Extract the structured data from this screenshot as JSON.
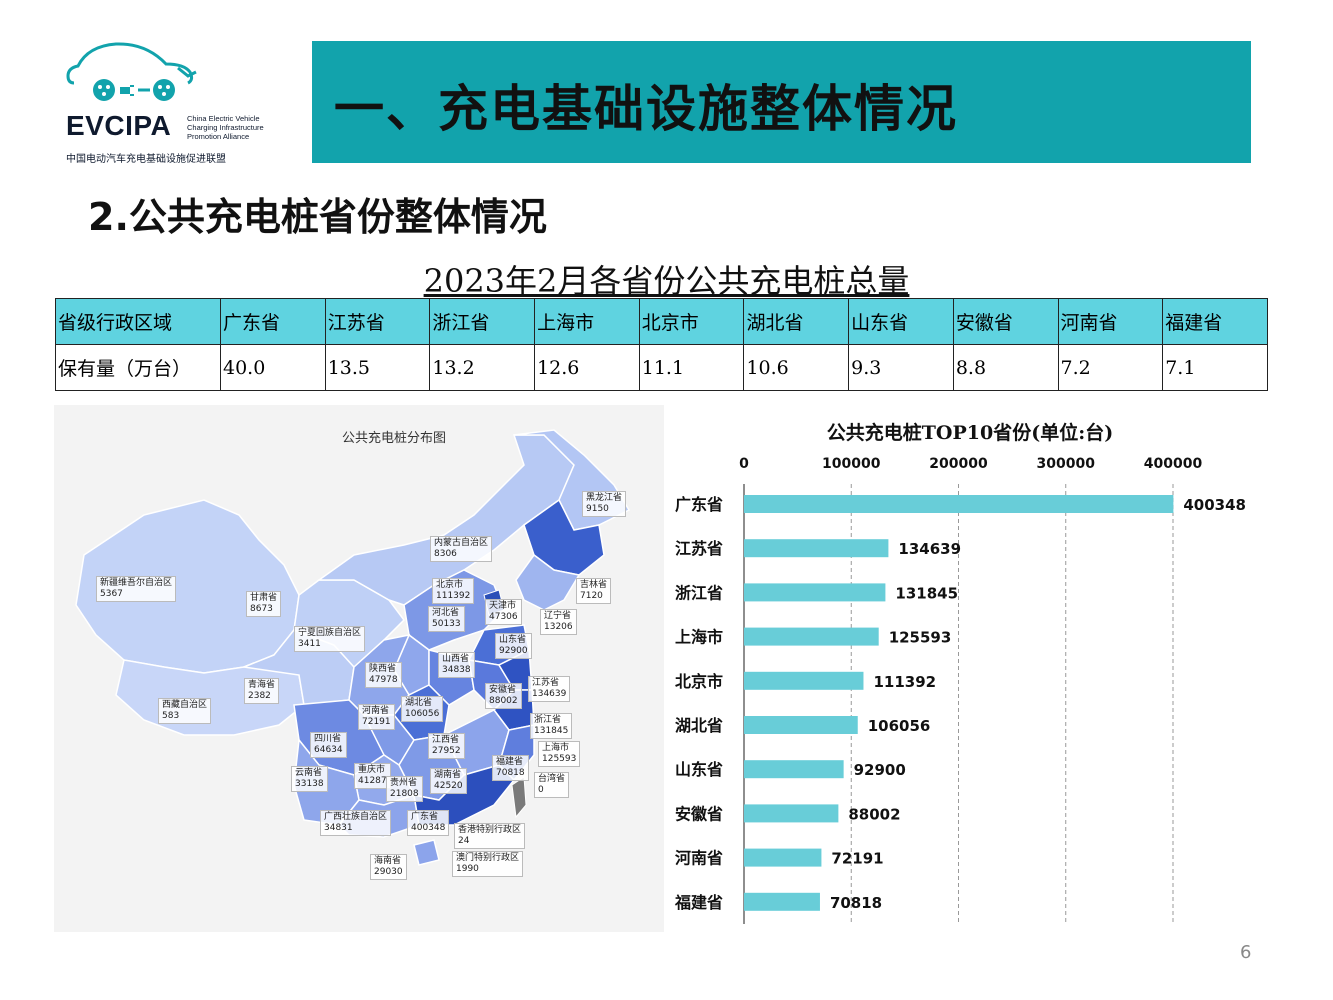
{
  "logo": {
    "abbr": "EVCIPA",
    "en_line1": "China Electric Vehicle",
    "en_line2": "Charging Infrastructure",
    "en_line3": "Promotion Alliance",
    "cn": "中国电动汽车充电基础设施促进联盟"
  },
  "header": {
    "title": "一、充电基础设施整体情况"
  },
  "section": {
    "title": "2.公共充电桩省份整体情况"
  },
  "table": {
    "title": "2023年2月各省份公共充电桩总量",
    "row_label_region": "省级行政区域",
    "row_label_count": "保有量（万台）",
    "provinces": [
      "广东省",
      "江苏省",
      "浙江省",
      "上海市",
      "北京市",
      "湖北省",
      "山东省",
      "安徽省",
      "河南省",
      "福建省"
    ],
    "counts": [
      "40.0",
      "13.5",
      "13.2",
      "12.6",
      "11.1",
      "10.6",
      "9.3",
      "8.8",
      "7.2",
      "7.1"
    ]
  },
  "map": {
    "title": "公共充电桩分布图",
    "labels": [
      {
        "name": "黑龙江省",
        "value": "9150"
      },
      {
        "name": "内蒙古自治区",
        "value": "8306"
      },
      {
        "name": "吉林省",
        "value": "7120"
      },
      {
        "name": "新疆维吾尔自治区",
        "value": "5367"
      },
      {
        "name": "甘肃省",
        "value": "8673"
      },
      {
        "name": "北京市",
        "value": "111392"
      },
      {
        "name": "天津市",
        "value": "47306"
      },
      {
        "name": "辽宁省",
        "value": "13206"
      },
      {
        "name": "河北省",
        "value": "50133"
      },
      {
        "name": "宁夏回族自治区",
        "value": "3411"
      },
      {
        "name": "山东省",
        "value": "92900"
      },
      {
        "name": "山西省",
        "value": "34838"
      },
      {
        "name": "陕西省",
        "value": "47978"
      },
      {
        "name": "青海省",
        "value": "2382"
      },
      {
        "name": "江苏省",
        "value": "134639"
      },
      {
        "name": "安徽省",
        "value": "88002"
      },
      {
        "name": "西藏自治区",
        "value": "583"
      },
      {
        "name": "河南省",
        "value": "72191"
      },
      {
        "name": "湖北省",
        "value": "106056"
      },
      {
        "name": "浙江省",
        "value": "131845"
      },
      {
        "name": "四川省",
        "value": "64634"
      },
      {
        "name": "江西省",
        "value": "27952"
      },
      {
        "name": "上海市",
        "value": "125593"
      },
      {
        "name": "重庆市",
        "value": "41287"
      },
      {
        "name": "福建省",
        "value": "70818"
      },
      {
        "name": "云南省",
        "value": "33138"
      },
      {
        "name": "贵州省",
        "value": "21808"
      },
      {
        "name": "湖南省",
        "value": "42520"
      },
      {
        "name": "台湾省",
        "value": "0"
      },
      {
        "name": "广西壮族自治区",
        "value": "34831"
      },
      {
        "name": "广东省",
        "value": "400348"
      },
      {
        "name": "香港特别行政区",
        "value": "24"
      },
      {
        "name": "澳门特别行政区",
        "value": "1990"
      },
      {
        "name": "海南省",
        "value": "29030"
      }
    ]
  },
  "colors": {
    "banner": "#12a3ac",
    "table_header": "#5fd3e0",
    "bar": "#68cdd8"
  },
  "chart_data": {
    "type": "bar",
    "orientation": "horizontal",
    "title": "公共充电桩TOP10省份(单位:台)",
    "categories": [
      "广东省",
      "江苏省",
      "浙江省",
      "上海市",
      "北京市",
      "湖北省",
      "山东省",
      "安徽省",
      "河南省",
      "福建省"
    ],
    "values": [
      400348,
      134639,
      131845,
      125593,
      111392,
      106056,
      92900,
      88002,
      72191,
      70818
    ],
    "xlim": [
      0,
      400000
    ],
    "xticks": [
      0,
      100000,
      200000,
      300000,
      400000
    ],
    "axis_position": "top",
    "grid": "dashed vertical",
    "data_labels": true
  },
  "footer": {
    "page": "6"
  }
}
